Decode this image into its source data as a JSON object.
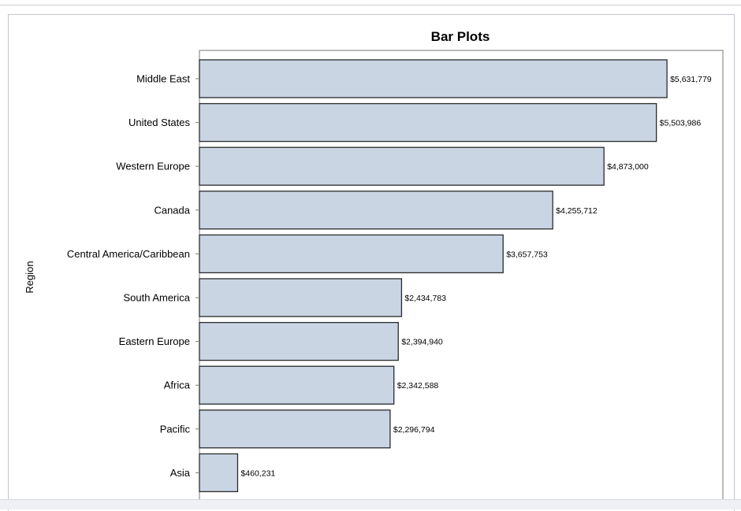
{
  "chart_data": {
    "type": "bar",
    "orientation": "horizontal",
    "title": "Bar Plots",
    "ylabel": "Region",
    "xlabel": "",
    "categories": [
      "Middle East",
      "United States",
      "Western Europe",
      "Canada",
      "Central America/Caribbean",
      "South America",
      "Eastern Europe",
      "Africa",
      "Pacific",
      "Asia"
    ],
    "values": [
      5631779,
      5503986,
      4873000,
      4255712,
      3657753,
      2434783,
      2394940,
      2342588,
      2296794,
      460231
    ],
    "value_labels": [
      "$5,631,779",
      "$5,503,986",
      "$4,873,000",
      "$4,255,712",
      "$3,657,753",
      "$2,434,783",
      "$2,394,940",
      "$2,342,588",
      "$2,296,794",
      "$460,231"
    ],
    "xlim": [
      0,
      6305000
    ],
    "grid": false,
    "colors": {
      "bar_fill": "#cad5e4",
      "bar_stroke": "#2b2b2b",
      "axis": "#7a7a7a"
    }
  }
}
